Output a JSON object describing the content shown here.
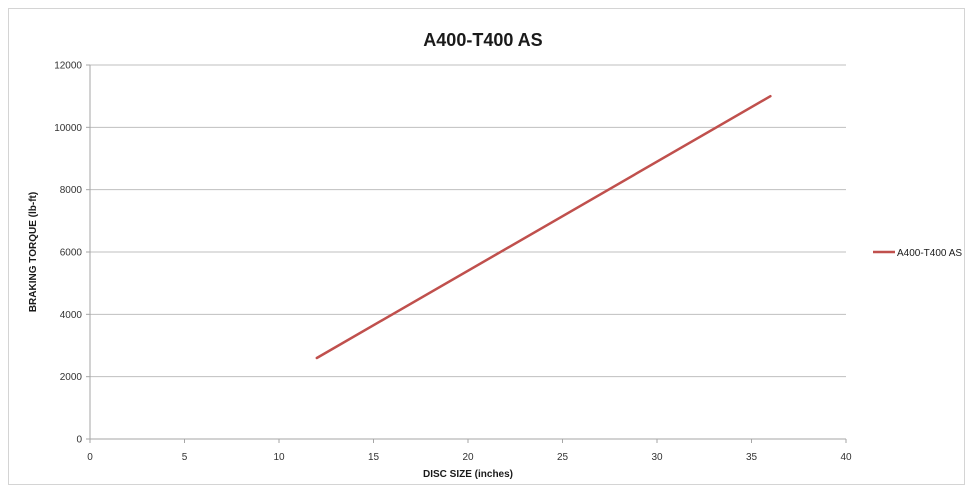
{
  "chart_data": {
    "type": "line",
    "title": "A400-T400 AS",
    "xlabel": "DISC SIZE (inches)",
    "ylabel": "BRAKING TORQUE (lb-ft)",
    "xlim": [
      0,
      40
    ],
    "ylim": [
      0,
      12000
    ],
    "x_ticks": [
      0,
      5,
      10,
      15,
      20,
      25,
      30,
      35,
      40
    ],
    "y_ticks": [
      0,
      2000,
      4000,
      6000,
      8000,
      10000,
      12000
    ],
    "grid": "horizontal",
    "legend_position": "right",
    "series": [
      {
        "name": "A400-T400 AS",
        "color": "#c0504d",
        "points": [
          {
            "x": 12,
            "y": 2600
          },
          {
            "x": 36,
            "y": 11000
          }
        ]
      }
    ]
  }
}
